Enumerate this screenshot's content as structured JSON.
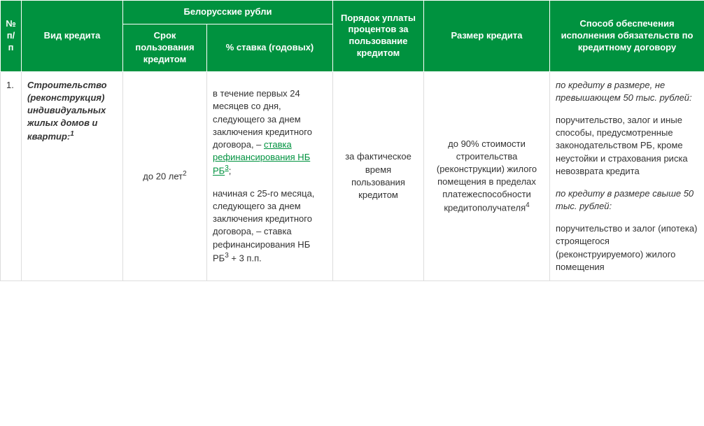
{
  "header": {
    "row_num": "№ п/п",
    "credit_type": "Вид кредита",
    "currency_group": "Белорусские рубли",
    "term": "Срок пользования кредитом",
    "rate": "% ставка (годовых)",
    "payment_order": "Порядок уплаты процентов за пользование кредитом",
    "credit_size": "Размер кредита",
    "collateral": "Способ обеспечения исполнения обязательств по кредитному договору"
  },
  "row1": {
    "num": "1.",
    "type_line1": "Строительство (реконструкция) индивидуальных жилых домов и квартир:",
    "type_sup": "1",
    "term": "до 20 лет",
    "term_sup": "2",
    "rate_p1a": "в течение первых 24 месяцев со дня, следующего за днем заключения кредитного договора, – ",
    "rate_link": "ставка рефинансирования НБ РБ",
    "rate_link_sup": "3",
    "rate_p1b": ";",
    "rate_p2a": "начиная с 25-го месяца, следующего за днем заключения кредитного договора, – ставка рефинансирования НБ РБ",
    "rate_p2_sup": "3",
    "rate_p2b": " + 3 п.п.",
    "payment": "за фактическое время пользования кредитом",
    "size": "до 90% стоимости строительства (реконструкции) жилого помещения в пределах платежеспособности кредитополучателя",
    "size_sup": "4",
    "coll_h1": "по кредиту в размере, не превышающем 50 тыс. рублей:",
    "coll_p1": "поручительство, залог и иные способы, предусмотренные законодательством РБ, кроме неустойки и страхования риска невозврата кредита",
    "coll_h2": "по кредиту в размере свыше 50 тыс. рублей:",
    "coll_p2": "поручительство и залог (ипотека) строящегося (реконструируемого) жилого помещения"
  },
  "colors": {
    "header_bg": "#00923f",
    "header_fg": "#ffffff",
    "link": "#00923f",
    "text": "#333333",
    "border": "#dddddd"
  }
}
